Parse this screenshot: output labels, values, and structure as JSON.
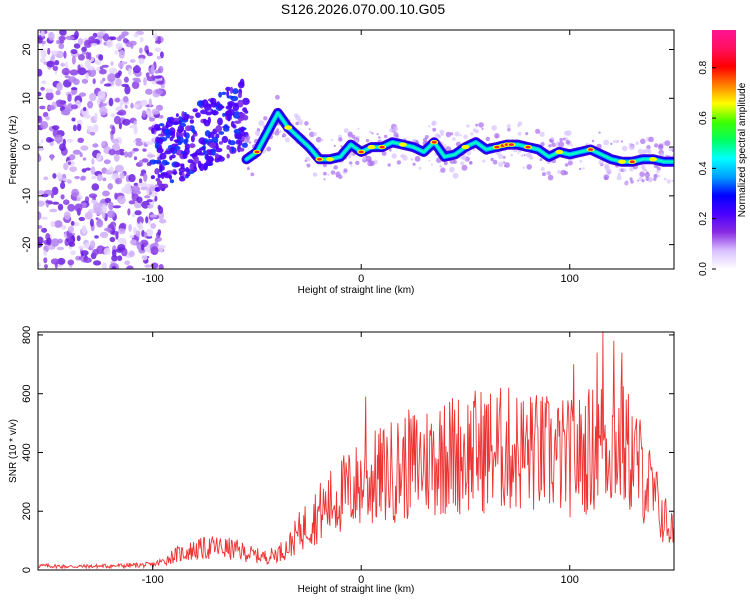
{
  "title": "S126.2026.070.00.10.G05",
  "chart_data": [
    {
      "type": "heatmap",
      "xlabel": "Height of straight line (km)",
      "ylabel": "Frequency (Hz)",
      "xlim": [
        -155,
        150
      ],
      "ylim": [
        -25,
        24
      ],
      "xticks": [
        -100,
        0,
        100
      ],
      "yticks": [
        -20,
        -10,
        0,
        10,
        20
      ],
      "ridge": {
        "x": [
          -55,
          -50,
          -45,
          -40,
          -35,
          -30,
          -25,
          -20,
          -15,
          -10,
          -5,
          0,
          5,
          10,
          15,
          20,
          25,
          30,
          35,
          40,
          45,
          50,
          55,
          60,
          65,
          70,
          75,
          80,
          85,
          90,
          95,
          100,
          105,
          110,
          115,
          120,
          125,
          130,
          135,
          140,
          145,
          150
        ],
        "y": [
          -2.5,
          -1,
          3,
          7,
          4,
          2,
          0,
          -2.5,
          -2.5,
          -2,
          0.5,
          -1,
          0,
          0,
          1,
          0.5,
          0,
          -1,
          1,
          -2,
          -1.5,
          0,
          1,
          -0.5,
          0,
          0.5,
          0.5,
          0,
          -0.5,
          -2,
          -1,
          -1.5,
          -1,
          -0.5,
          -1.5,
          -2.5,
          -3,
          -3,
          -2.5,
          -2.5,
          -3,
          -3
        ]
      },
      "colorbar": {
        "label": "Normalized spectral amplitude",
        "range": [
          0,
          0.95
        ],
        "ticks": [
          "0.0",
          "0.2",
          "0.4",
          "0.6",
          "0.8"
        ],
        "tick_values": [
          0,
          0.2,
          0.4,
          0.6,
          0.8
        ],
        "colors": [
          "#ffffff",
          "#d8c0ff",
          "#8a2be2",
          "#4b00ff",
          "#0000ff",
          "#00a0ff",
          "#00ffff",
          "#00ff60",
          "#40ff00",
          "#ffff00",
          "#ff8000",
          "#ff0000",
          "#ff1060",
          "#ff1493"
        ]
      }
    },
    {
      "type": "line",
      "xlabel": "Height of straight line (km)",
      "ylabel": "SNR (10 * v/v)",
      "xlim": [
        -155,
        150
      ],
      "ylim": [
        0,
        810
      ],
      "xticks": [
        -100,
        0,
        100
      ],
      "yticks": [
        0,
        200,
        400,
        600,
        800
      ],
      "color": "#ee3333",
      "series": [
        {
          "name": "SNR",
          "x": [
            -155,
            -140,
            -120,
            -100,
            -95,
            -90,
            -80,
            -70,
            -60,
            -50,
            -45,
            -40,
            -35,
            -30,
            -25,
            -20,
            -15,
            -10,
            -5,
            0,
            10,
            20,
            30,
            40,
            50,
            60,
            70,
            80,
            90,
            100,
            105,
            110,
            115,
            120,
            125,
            130,
            135,
            140,
            145,
            150
          ],
          "y": [
            15,
            12,
            14,
            18,
            30,
            50,
            70,
            80,
            70,
            50,
            45,
            60,
            80,
            130,
            170,
            200,
            230,
            260,
            280,
            300,
            330,
            360,
            380,
            400,
            410,
            420,
            420,
            410,
            400,
            390,
            400,
            420,
            440,
            450,
            430,
            400,
            340,
            260,
            180,
            130
          ],
          "peaks": [
            {
              "x": 2,
              "y": 590
            },
            {
              "x": 40,
              "y": 560
            },
            {
              "x": 82,
              "y": 570
            },
            {
              "x": 102,
              "y": 700
            },
            {
              "x": 113,
              "y": 740
            },
            {
              "x": 116,
              "y": 810
            },
            {
              "x": 121,
              "y": 780
            },
            {
              "x": 125,
              "y": 740
            }
          ]
        }
      ]
    }
  ]
}
